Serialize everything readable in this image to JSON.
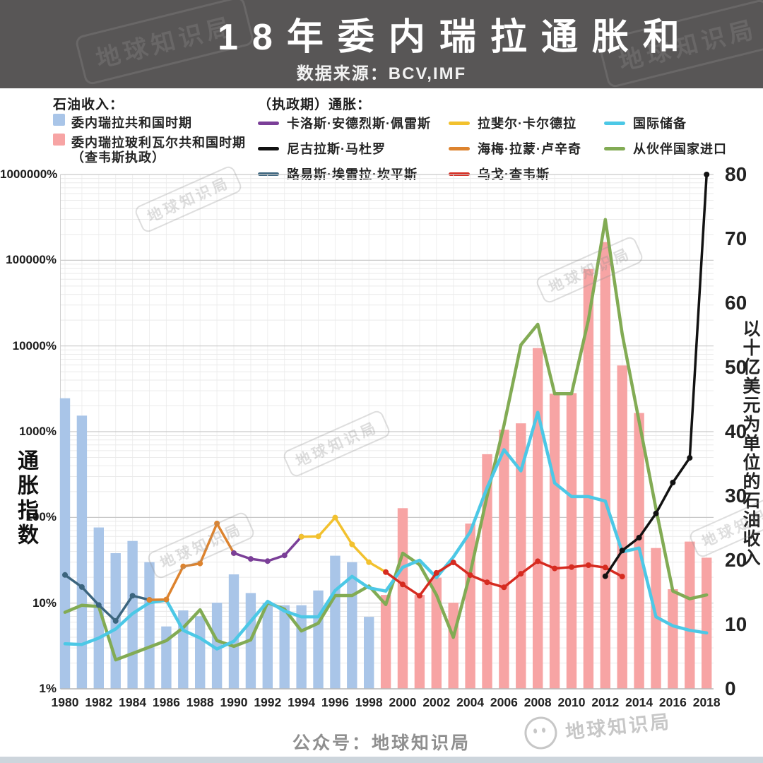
{
  "header": {
    "title": "18年委内瑞拉通胀和",
    "subtitle": "数据来源：BCV,IMF"
  },
  "legend": {
    "oil_title": "石油收入：",
    "oil_items": [
      {
        "label": "委内瑞拉共和国时期",
        "color": "#a9c5e8"
      },
      {
        "label": "委内瑞拉玻利瓦尔共和国时期",
        "label2": "（查韦斯执政）",
        "color": "#f7a4a4"
      }
    ],
    "inflation_title": "（执政期）通胀：",
    "line_items": [
      {
        "label": "卡洛斯·安德烈斯·佩雷斯",
        "color": "#7b3f98",
        "col": 0
      },
      {
        "label": "尼古拉斯·马杜罗",
        "color": "#121212",
        "col": 0
      },
      {
        "label": "路易斯·埃雷拉·坎平斯",
        "color": "#3c657e",
        "col": 0
      },
      {
        "label": "拉斐尔·卡尔德拉",
        "color": "#f2c12e",
        "col": 1
      },
      {
        "label": "海梅·拉蒙·卢辛奇",
        "color": "#dd832e",
        "col": 1
      },
      {
        "label": "乌戈·查韦斯",
        "color": "#d62b20",
        "col": 1
      },
      {
        "label": "国际储备",
        "color": "#4cc8e6",
        "col": 2
      },
      {
        "label": "从伙伴国家进口",
        "color": "#82ab54",
        "col": 2
      }
    ]
  },
  "axes": {
    "left_label": "通胀指数",
    "left_ticks": [
      "1000000%",
      "100000%",
      "10000%",
      "1000%",
      "100%",
      "10%",
      "1%"
    ],
    "right_label": "以十亿美元为单位的石油收入",
    "right_ticks": [
      "80",
      "70",
      "60",
      "50",
      "40",
      "30",
      "20",
      "10",
      "0"
    ],
    "x_ticks": [
      "1980",
      "1982",
      "1984",
      "1986",
      "1988",
      "1990",
      "1992",
      "1994",
      "1996",
      "1998",
      "2000",
      "2002",
      "2004",
      "2006",
      "2008",
      "2010",
      "2012",
      "2014",
      "2016",
      "2018"
    ]
  },
  "chart_data": {
    "type": "combo (bars + lines)",
    "left_axis": {
      "scale": "log",
      "unit": "%",
      "range_percent": [
        1,
        1000000
      ]
    },
    "right_axis": {
      "scale": "linear",
      "unit": "billion USD",
      "range": [
        0,
        80
      ]
    },
    "x_range": [
      1980,
      2018
    ],
    "grid": true,
    "years": [
      1980,
      1981,
      1982,
      1983,
      1984,
      1985,
      1986,
      1987,
      1988,
      1989,
      1990,
      1991,
      1992,
      1993,
      1994,
      1995,
      1996,
      1997,
      1998,
      1999,
      2000,
      2001,
      2002,
      2003,
      2004,
      2005,
      2006,
      2007,
      2008,
      2009,
      2010,
      2011,
      2012,
      2013,
      2014,
      2015,
      2016,
      2017,
      2018
    ],
    "bars": {
      "name": "石油收入",
      "axis": "right",
      "unit": "十亿美元",
      "color_republic": "#a9c5e8",
      "color_bolivarian": "#f7a4a4",
      "bolivarian_from_year": 1999,
      "values": [
        45.2,
        42.5,
        25.1,
        21.1,
        23.0,
        19.7,
        9.7,
        12.2,
        11.3,
        13.4,
        17.8,
        14.9,
        13.4,
        13.0,
        13.0,
        15.3,
        20.7,
        19.7,
        11.2,
        14.6,
        28.1,
        14.6,
        17.3,
        13.4,
        25.7,
        36.5,
        40.3,
        41.3,
        53.0,
        45.9,
        46.0,
        65.3,
        69.5,
        50.3,
        42.9,
        21.9,
        15.5,
        22.9,
        20.4
      ]
    },
    "series": [
      {
        "id": "imports-partners",
        "name": "从伙伴国家进口",
        "axis": "right",
        "color": "#82ab54",
        "width": 4.5,
        "markers": false,
        "start_year": 1980,
        "values": [
          11.9,
          13.0,
          12.8,
          4.5,
          5.5,
          6.5,
          7.5,
          9.5,
          12.3,
          7.5,
          6.6,
          7.6,
          13.4,
          12.4,
          9.0,
          10.2,
          14.5,
          14.5,
          16.0,
          13.1,
          21.1,
          19.3,
          14.6,
          8.0,
          18.0,
          30.0,
          41.0,
          53.5,
          56.7,
          45.9,
          45.9,
          57.4,
          73.0,
          55.2,
          41.6,
          28.0,
          15.2,
          14.0,
          14.6
        ]
      },
      {
        "id": "international-reserves",
        "name": "国际储备",
        "axis": "right",
        "color": "#4cc8e6",
        "width": 4.5,
        "markers": false,
        "start_year": 1980,
        "values": [
          7.0,
          6.9,
          7.9,
          9.3,
          11.7,
          13.4,
          13.8,
          9.1,
          7.9,
          6.2,
          7.4,
          10.5,
          13.6,
          12.1,
          11.2,
          11.2,
          15.3,
          17.5,
          15.7,
          15.2,
          18.9,
          20.0,
          17.3,
          20.5,
          24.4,
          31.3,
          37.2,
          33.9,
          43.0,
          32.0,
          29.9,
          29.9,
          29.2,
          21.3,
          21.9,
          11.2,
          9.8,
          9.1,
          8.7
        ]
      },
      {
        "id": "herrera-campins",
        "name": "路易斯·埃雷拉·坎平斯",
        "axis": "left",
        "color": "#3c657e",
        "width": 3.5,
        "markers": true,
        "start_year": 1980,
        "values": [
          21.3,
          15.4,
          9.5,
          6.2,
          12.2,
          10.9
        ]
      },
      {
        "id": "lusinchi",
        "name": "海梅·拉蒙·卢辛奇",
        "axis": "left",
        "color": "#dd832e",
        "width": 3.5,
        "markers": true,
        "start_year": 1985,
        "values": [
          10.9,
          11.0,
          26.8,
          29.0,
          84.9,
          38.3
        ]
      },
      {
        "id": "perez",
        "name": "卡洛斯·安德烈斯·佩雷斯",
        "axis": "left",
        "color": "#7b3f98",
        "width": 3.5,
        "markers": true,
        "start_year": 1990,
        "values": [
          38.3,
          32.8,
          30.9,
          36.0,
          59.5
        ]
      },
      {
        "id": "caldera",
        "name": "拉斐尔·卡尔德拉",
        "axis": "left",
        "color": "#f2c12e",
        "width": 3.5,
        "markers": true,
        "start_year": 1994,
        "values": [
          59.5,
          60.0,
          99.5,
          48.5,
          30.0,
          23.0
        ]
      },
      {
        "id": "chavez",
        "name": "乌戈·查韦斯",
        "axis": "left",
        "color": "#d62b20",
        "width": 3.5,
        "markers": true,
        "start_year": 1999,
        "values": [
          23.0,
          16.5,
          12.2,
          22.5,
          29.8,
          21.2,
          17.5,
          15.3,
          22.0,
          30.8,
          25.4,
          26.3,
          27.7,
          26.0,
          20.4
        ]
      },
      {
        "id": "maduro",
        "name": "尼古拉斯·马杜罗",
        "axis": "left",
        "color": "#121212",
        "width": 3.5,
        "markers": true,
        "start_year": 2012,
        "values": [
          20.6,
          41,
          58,
          111,
          255,
          495,
          1000000
        ]
      }
    ]
  },
  "watermark": {
    "text": "地球知识局"
  },
  "footer": {
    "caption": "公众号：地球知识局",
    "logo_text": "地球知识局"
  }
}
